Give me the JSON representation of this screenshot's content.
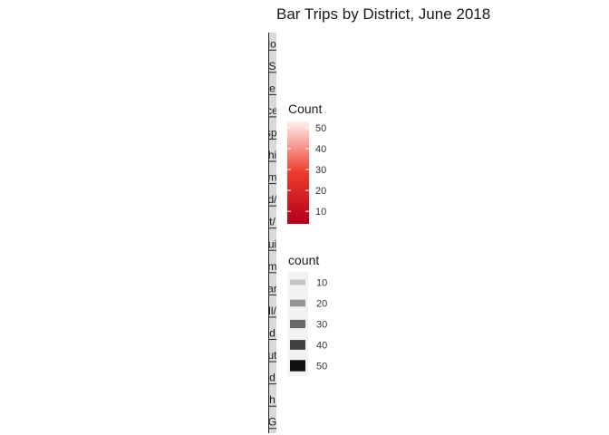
{
  "chart_data": {
    "type": "bar",
    "title": "Bar Trips by District, June 2018",
    "xlabel": "",
    "ylabel": "",
    "facet_labels": [
      "Nod",
      "S",
      "e",
      "ce",
      "spi",
      "hi",
      "m",
      "d/",
      "t/",
      "ui",
      "m",
      "ar",
      "ll/",
      "d",
      "ut",
      "d",
      "h",
      "G"
    ],
    "facet_label_colors": [
      "#1a1a1a",
      "#1a1a1a",
      "#1a1a1a",
      "#1a1a1a",
      "#1a1a1a",
      "#1a237e",
      "#1a1a1a",
      "#1a1a1a",
      "#1a1a1a",
      "#1a1a1a",
      "#1a1a1a",
      "#1a1a1a",
      "#1a1a1a",
      "#1a1a1a",
      "#1a1a1a",
      "#1a1a1a",
      "#1a1a1a",
      "#1a1a1a"
    ],
    "fill_legend": {
      "title": "Count",
      "breaks": [
        10,
        20,
        30,
        40,
        50
      ],
      "range": [
        4,
        53
      ],
      "color_low": "#b2001a",
      "color_mid": "#ef3b2c",
      "color_high": "#fff0ec"
    },
    "size_legend": {
      "title": "count",
      "breaks": [
        10,
        20,
        30,
        40,
        50
      ],
      "colors": [
        "#c4c4c4",
        "#939393",
        "#6a6a6a",
        "#414141",
        "#111111"
      ]
    }
  }
}
